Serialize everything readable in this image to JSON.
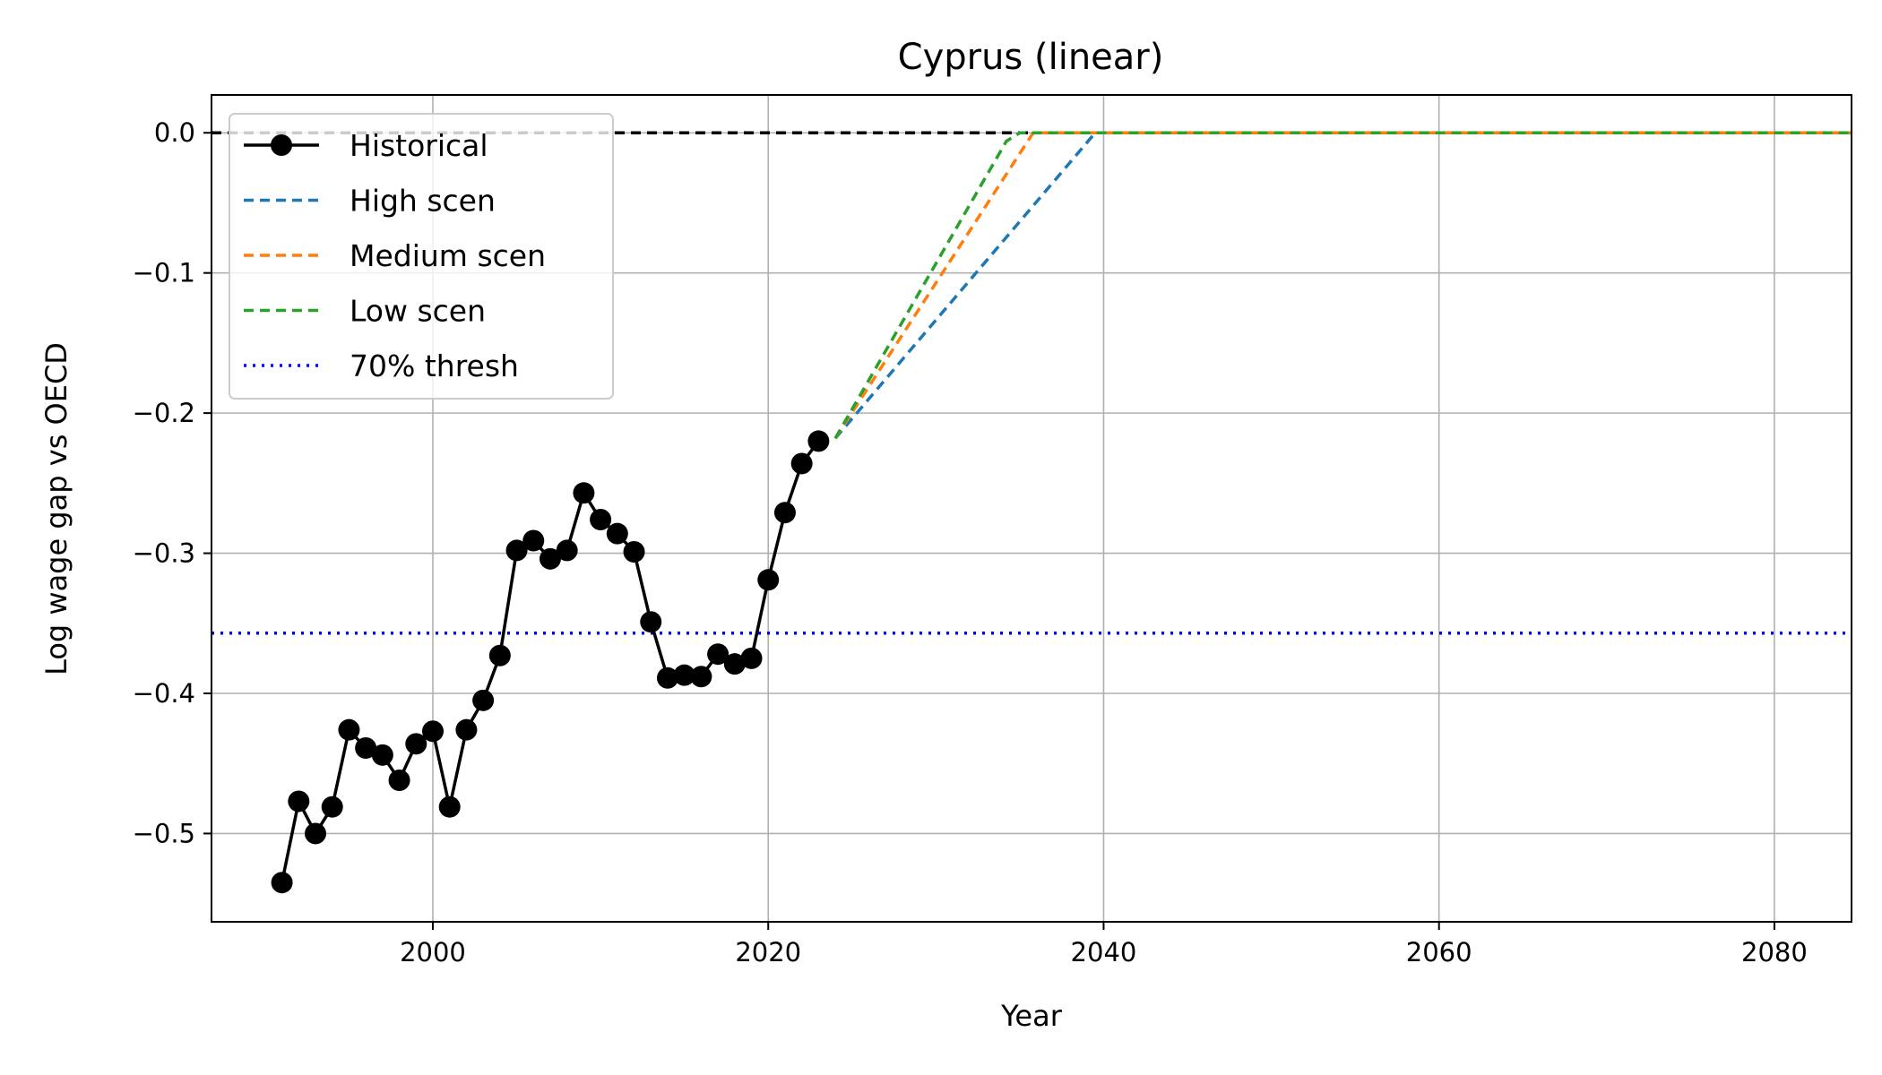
{
  "chart_data": {
    "type": "line",
    "title": "Cyprus (linear)",
    "xlabel": "Year",
    "ylabel": "Log wage gap vs OECD",
    "xlim": [
      1986.8,
      2084.6
    ],
    "ylim": [
      -0.563,
      0.027
    ],
    "xticks": [
      2000,
      2020,
      2040,
      2060,
      2080
    ],
    "yticks": [
      0.0,
      -0.1,
      -0.2,
      -0.3,
      -0.4,
      -0.5
    ],
    "xtick_labels": [
      "2000",
      "2020",
      "2040",
      "2060",
      "2080"
    ],
    "ytick_labels": [
      "0.0",
      "−0.1",
      "−0.2",
      "−0.3",
      "−0.4",
      "−0.5"
    ],
    "grid": true,
    "legend_position": "upper-left",
    "series": [
      {
        "name": "Historical",
        "color": "#000000",
        "style": "solid-marker",
        "x": [
          1991,
          1992,
          1993,
          1994,
          1995,
          1996,
          1997,
          1998,
          1999,
          2000,
          2001,
          2002,
          2003,
          2004,
          2005,
          2006,
          2007,
          2008,
          2009,
          2010,
          2011,
          2012,
          2013,
          2014,
          2015,
          2016,
          2017,
          2018,
          2019,
          2020,
          2021,
          2022,
          2023
        ],
        "y": [
          -0.535,
          -0.477,
          -0.5,
          -0.481,
          -0.426,
          -0.439,
          -0.444,
          -0.462,
          -0.436,
          -0.427,
          -0.481,
          -0.426,
          -0.405,
          -0.373,
          -0.298,
          -0.291,
          -0.304,
          -0.298,
          -0.257,
          -0.276,
          -0.286,
          -0.299,
          -0.349,
          -0.389,
          -0.387,
          -0.388,
          -0.372,
          -0.379,
          -0.375,
          -0.319,
          -0.271,
          -0.236,
          -0.22
        ]
      },
      {
        "name": "High scen",
        "color": "#1f77b4",
        "style": "dashed",
        "x": [
          2024,
          2039.5,
          2084.6
        ],
        "y": [
          -0.218,
          0.0,
          0.0
        ]
      },
      {
        "name": "Medium scen",
        "color": "#ff7f0e",
        "style": "dashed",
        "x": [
          2024,
          2035.8,
          2084.6
        ],
        "y": [
          -0.218,
          0.0,
          0.0
        ]
      },
      {
        "name": "Low scen",
        "color": "#2ca02c",
        "style": "dashed",
        "x": [
          2024,
          2034.2,
          2035,
          2084.6
        ],
        "y": [
          -0.218,
          -0.006,
          0.0,
          0.0
        ]
      },
      {
        "name": "70% thresh",
        "color": "#0000ff",
        "style": "dotted",
        "x": [
          1986.8,
          2084.6
        ],
        "y": [
          -0.357,
          -0.357
        ]
      }
    ],
    "reference_line": {
      "name": "zero-line",
      "y": 0.0,
      "color": "#000000",
      "style": "dashed"
    }
  }
}
